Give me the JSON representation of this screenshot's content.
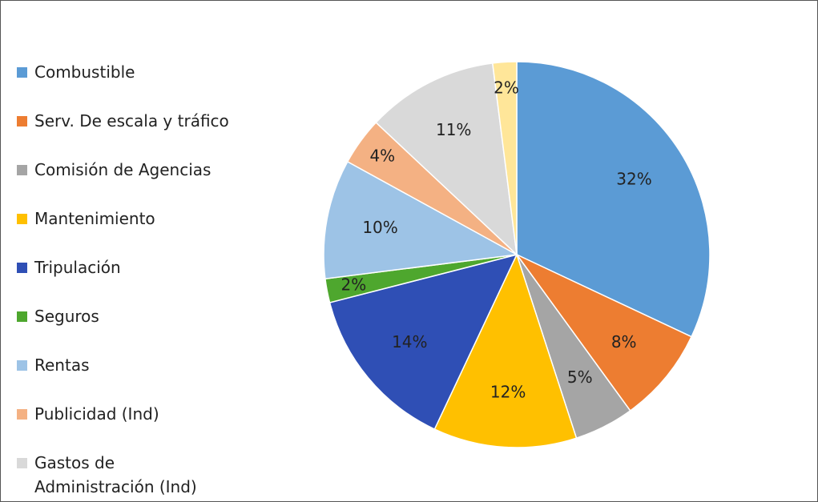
{
  "chart_data": {
    "type": "pie",
    "categories": [
      "Combustible",
      "Serv. De escala y tráfico",
      "Comisión de Agencias",
      "Mantenimiento",
      "Tripulación",
      "Seguros",
      "Rentas",
      "Publicidad (Ind)",
      "Gastos de Administración (Ind)",
      null
    ],
    "values": [
      32,
      8,
      5,
      12,
      14,
      2,
      10,
      4,
      11,
      2
    ],
    "value_labels": [
      "32%",
      "8%",
      "5%",
      "12%",
      "14%",
      "2%",
      "10%",
      "4%",
      "11%",
      "2%"
    ],
    "colors": [
      "#5b9bd5",
      "#ed7d31",
      "#a5a5a5",
      "#ffc000",
      "#2f4fb5",
      "#4ea72e",
      "#9dc3e6",
      "#f4b183",
      "#d9d9d9",
      "#ffe699"
    ],
    "legend": "left"
  }
}
